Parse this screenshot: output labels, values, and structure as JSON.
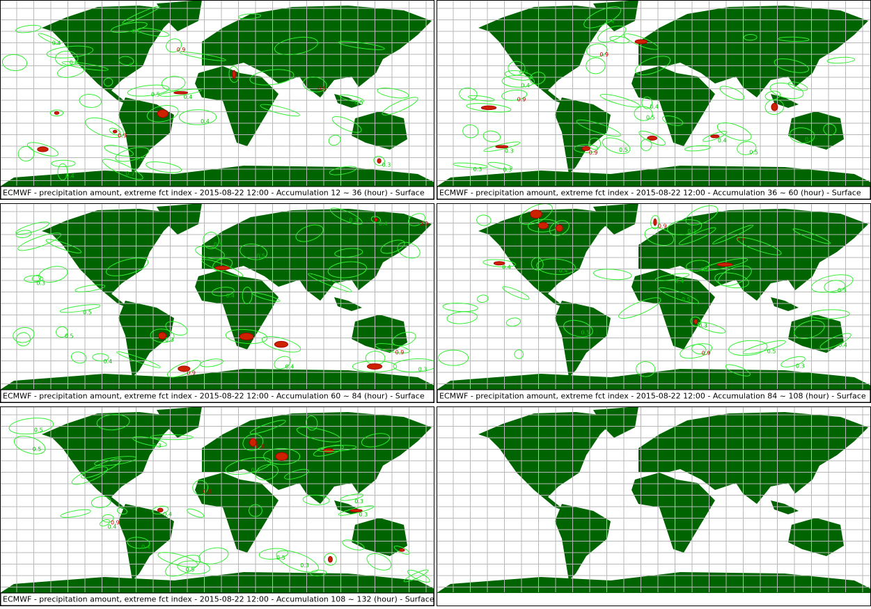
{
  "panels": [
    {
      "caption": "ECMWF - precipitation amount, extreme fct index - 2015-08-22 12:00 - Accumulation  12 ~  36 (hour) - Surface",
      "labels": [
        "0.3",
        "0.9",
        "0.4",
        "0.5"
      ]
    },
    {
      "caption": "ECMWF - precipitation amount, extreme fct index - 2015-08-22 12:00 - Accumulation  36 ~  60 (hour) - Surface",
      "labels": [
        "0.3",
        "0.9",
        "0.4",
        "0.5"
      ]
    },
    {
      "caption": "ECMWF - precipitation amount, extreme fct index - 2015-08-22 12:00 - Accumulation  60 ~  84 (hour) - Surface",
      "labels": [
        "0.3",
        "0.9",
        "0.4",
        "0.5"
      ]
    },
    {
      "caption": "ECMWF - precipitation amount, extreme fct index - 2015-08-22 12:00 - Accumulation  84 ~ 108 (hour) - Surface",
      "labels": [
        "0.3",
        "0.9",
        "0.4",
        "0.5"
      ]
    },
    {
      "caption": "ECMWF - precipitation amount, extreme fct index - 2015-08-22 12:00 - Accumulation 108 ~ 132 (hour) - Surface",
      "labels": [
        "0.3",
        "0.9",
        "0.4",
        "0.5"
      ]
    },
    {
      "labels": []
    }
  ]
}
